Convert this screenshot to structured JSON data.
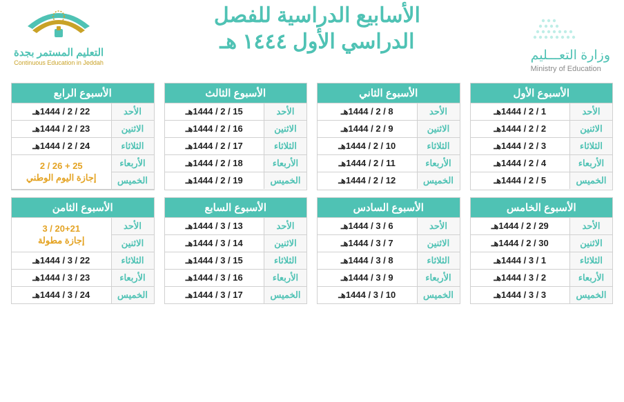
{
  "header": {
    "ministry_ar": "وزارة التعـــليم",
    "ministry_en": "Ministry of Education",
    "title_line1": "الأسابيع الدراسية للفصل",
    "title_line2": "الدراسي الأول ١٤٤٤ هـ",
    "jeddah_ar": "التعليم المستمر بجدة",
    "jeddah_en": "Continuous Education in Jeddah"
  },
  "days": [
    "الأحد",
    "الاثنين",
    "الثلاثاء",
    "الأربعاء",
    "الخميس"
  ],
  "weeks": [
    {
      "title": "الأسبوع الأول",
      "rows": [
        {
          "day": "الأحد",
          "date": "1 / 2 / 1444هـ"
        },
        {
          "day": "الاثنين",
          "date": "2 / 2 / 1444هـ"
        },
        {
          "day": "الثلاثاء",
          "date": "3 / 2 / 1444هـ"
        },
        {
          "day": "الأربعاء",
          "date": "4 / 2 / 1444هـ"
        },
        {
          "day": "الخميس",
          "date": "5 / 2 / 1444هـ"
        }
      ]
    },
    {
      "title": "الأسبوع الثاني",
      "rows": [
        {
          "day": "الأحد",
          "date": "8 / 2 / 1444هـ"
        },
        {
          "day": "الاثنين",
          "date": "9 / 2 / 1444هـ"
        },
        {
          "day": "الثلاثاء",
          "date": "10 / 2 / 1444هـ"
        },
        {
          "day": "الأربعاء",
          "date": "11 / 2 / 1444هـ"
        },
        {
          "day": "الخميس",
          "date": "12 / 2 / 1444هـ"
        }
      ]
    },
    {
      "title": "الأسبوع الثالث",
      "rows": [
        {
          "day": "الأحد",
          "date": "15 / 2 / 1444هـ"
        },
        {
          "day": "الاثنين",
          "date": "16 / 2 / 1444هـ"
        },
        {
          "day": "الثلاثاء",
          "date": "17 / 2 / 1444هـ"
        },
        {
          "day": "الأربعاء",
          "date": "18 / 2 / 1444هـ"
        },
        {
          "day": "الخميس",
          "date": "19 / 2 / 1444هـ"
        }
      ]
    },
    {
      "title": "الأسبوع الرابع",
      "special": "merge-wb",
      "rows": [
        {
          "day": "الأحد",
          "date": "22 / 2 / 1444هـ"
        },
        {
          "day": "الاثنين",
          "date": "23 / 2 / 1444هـ"
        },
        {
          "day": "الثلاثاء",
          "date": "24 / 2 / 1444هـ"
        }
      ],
      "merge_days": [
        "الأربعاء",
        "الخميس"
      ],
      "merge_text": "25 + 26 / 2\nإجازة اليوم الوطني"
    },
    {
      "title": "الأسبوع الخامس",
      "rows": [
        {
          "day": "الأحد",
          "date": "29 / 2 / 1444هـ"
        },
        {
          "day": "الاثنين",
          "date": "30 / 2 / 1444هـ"
        },
        {
          "day": "الثلاثاء",
          "date": "1 / 3 / 1444هـ"
        },
        {
          "day": "الأربعاء",
          "date": "2 / 3 / 1444هـ"
        },
        {
          "day": "الخميس",
          "date": "3 / 3 / 1444هـ"
        }
      ]
    },
    {
      "title": "الأسبوع السادس",
      "rows": [
        {
          "day": "الأحد",
          "date": "6 / 3 / 1444هـ"
        },
        {
          "day": "الاثنين",
          "date": "7 / 3 / 1444هـ"
        },
        {
          "day": "الثلاثاء",
          "date": "8 / 3 / 1444هـ"
        },
        {
          "day": "الأربعاء",
          "date": "9 / 3 / 1444هـ"
        },
        {
          "day": "الخميس",
          "date": "10 / 3 / 1444هـ"
        }
      ]
    },
    {
      "title": "الأسبوع السابع",
      "rows": [
        {
          "day": "الأحد",
          "date": "13 / 3 / 1444هـ"
        },
        {
          "day": "الاثنين",
          "date": "14 / 3 / 1444هـ"
        },
        {
          "day": "الثلاثاء",
          "date": "15 / 3 / 1444هـ"
        },
        {
          "day": "الأربعاء",
          "date": "16 / 3 / 1444هـ"
        },
        {
          "day": "الخميس",
          "date": "17 / 3 / 1444هـ"
        }
      ]
    },
    {
      "title": "الأسبوع الثامن",
      "special": "merge-top",
      "merge_days": [
        "الأحد",
        "الاثنين"
      ],
      "merge_text": "20+21 / 3\nإجازة مطولة",
      "rows": [
        {
          "day": "الثلاثاء",
          "date": "22 / 3 / 1444هـ"
        },
        {
          "day": "الأربعاء",
          "date": "23 / 3 / 1444هـ"
        },
        {
          "day": "الخميس",
          "date": "24 / 3 / 1444هـ"
        }
      ]
    }
  ],
  "colors": {
    "accent": "#4fc2b4",
    "holiday": "#e4a323",
    "border": "#d0d0d0",
    "text": "#222222",
    "daybg": "#f7f7f7"
  }
}
